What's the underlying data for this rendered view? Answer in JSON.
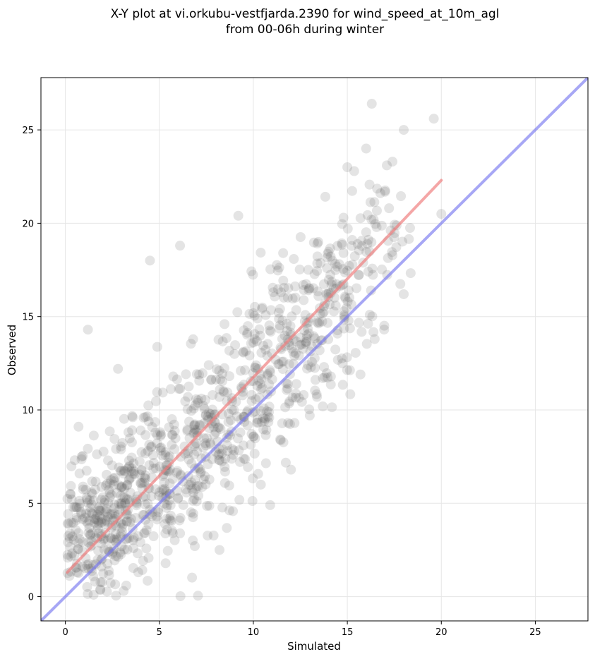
{
  "chart_data": {
    "type": "scatter",
    "title": [
      "X-Y plot at vi.orkubu-vestfjarda.2390 for wind_speed_at_10m_agl",
      "from 00-06h during winter"
    ],
    "xlabel": "Simulated",
    "ylabel": "Observed",
    "xlim": [
      -1.3,
      27.8
    ],
    "ylim": [
      -1.3,
      27.8
    ],
    "xticks": [
      0,
      5,
      10,
      15,
      20,
      25
    ],
    "yticks": [
      0,
      5,
      10,
      15,
      20,
      25
    ],
    "grid": true,
    "point_color": "#555555",
    "fit_color": "#f08080",
    "identity_color": "#7878f0",
    "fit_line": {
      "x": [
        0.1,
        20.0
      ],
      "y": [
        1.3,
        22.3
      ]
    },
    "identity_line": {
      "x": [
        -1.3,
        27.8
      ],
      "y": [
        -1.3,
        27.8
      ]
    },
    "notable_points": [
      {
        "x": 16.3,
        "y": 26.4
      },
      {
        "x": 19.6,
        "y": 25.6
      },
      {
        "x": 18.0,
        "y": 25.0
      },
      {
        "x": 16.0,
        "y": 24.0
      },
      {
        "x": 17.4,
        "y": 23.3
      },
      {
        "x": 15.0,
        "y": 23.0
      },
      {
        "x": 17.1,
        "y": 23.1
      },
      {
        "x": 20.0,
        "y": 20.5
      },
      {
        "x": 9.2,
        "y": 20.4
      },
      {
        "x": 6.1,
        "y": 18.8
      },
      {
        "x": 4.5,
        "y": 18.0
      },
      {
        "x": 1.2,
        "y": 14.3
      },
      {
        "x": 18.0,
        "y": 16.2
      },
      {
        "x": 15.7,
        "y": 11.9
      },
      {
        "x": 13.0,
        "y": 9.7
      },
      {
        "x": 12.0,
        "y": 6.8
      },
      {
        "x": 10.4,
        "y": 6.0
      },
      {
        "x": 8.2,
        "y": 2.5
      },
      {
        "x": 0.7,
        "y": 9.1
      },
      {
        "x": 2.8,
        "y": 12.2
      },
      {
        "x": 3.1,
        "y": 0.3
      },
      {
        "x": 1.5,
        "y": 0.1
      }
    ],
    "bulk_clusters": [
      {
        "x": 1.5,
        "y": 3.5,
        "sx": 1.0,
        "sy": 1.6,
        "n": 160
      },
      {
        "x": 3.2,
        "y": 5.0,
        "sx": 1.3,
        "sy": 2.0,
        "n": 170
      },
      {
        "x": 5.5,
        "y": 6.5,
        "sx": 1.4,
        "sy": 2.1,
        "n": 160
      },
      {
        "x": 7.8,
        "y": 8.6,
        "sx": 1.3,
        "sy": 2.2,
        "n": 140
      },
      {
        "x": 10.2,
        "y": 11.4,
        "sx": 1.3,
        "sy": 2.2,
        "n": 140
      },
      {
        "x": 12.4,
        "y": 14.2,
        "sx": 1.2,
        "sy": 2.2,
        "n": 130
      },
      {
        "x": 14.6,
        "y": 16.6,
        "sx": 1.1,
        "sy": 2.2,
        "n": 100
      },
      {
        "x": 16.8,
        "y": 19.2,
        "sx": 0.9,
        "sy": 1.6,
        "n": 45
      }
    ]
  }
}
